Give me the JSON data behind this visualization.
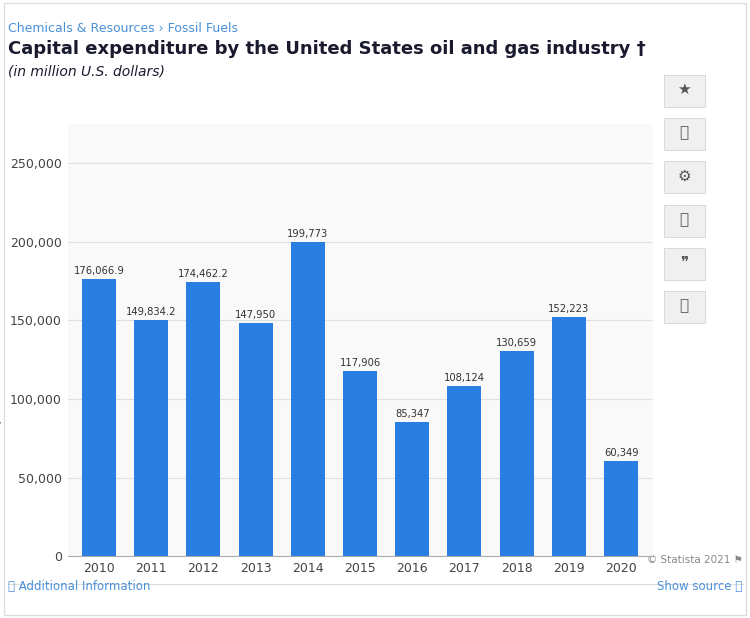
{
  "breadcrumb": "Chemicals & Resources › Fossil Fuels",
  "title": "Capital expenditure by the United States oil and gas industry †",
  "subtitle": "(in million U.S. dollars)",
  "years": [
    2010,
    2011,
    2012,
    2013,
    2014,
    2015,
    2016,
    2017,
    2018,
    2019,
    2020
  ],
  "values": [
    176066.9,
    149834.2,
    174462.2,
    147950,
    199773,
    117906,
    85347,
    108124,
    130659,
    152223,
    60349
  ],
  "bar_labels": [
    "176,066.9",
    "149,834.2",
    "174,462.2",
    "147,950",
    "199,773",
    "117,906",
    "85,347",
    "108,124",
    "130,659",
    "152,223",
    "60,349"
  ],
  "bar_color": "#2a7de1",
  "ylabel": "Expenditures in million U.S. dollars",
  "ylim": [
    0,
    275000
  ],
  "yticks": [
    0,
    50000,
    100000,
    150000,
    200000,
    250000
  ],
  "ytick_labels": [
    "0",
    "50,000",
    "100,000",
    "150,000",
    "200,000",
    "250,000"
  ],
  "background_color": "#ffffff",
  "plot_bg_color": "#f9f9f9",
  "breadcrumb_color": "#4a90d9",
  "title_color": "#1a1a2e",
  "grid_color": "#e0e0e0",
  "footer_left": "ⓘ Additional Information",
  "footer_right": "Show source ⓘ",
  "copyright": "© Statista 2021 ⚑",
  "footer_color": "#4a90d9",
  "copyright_color": "#888888"
}
